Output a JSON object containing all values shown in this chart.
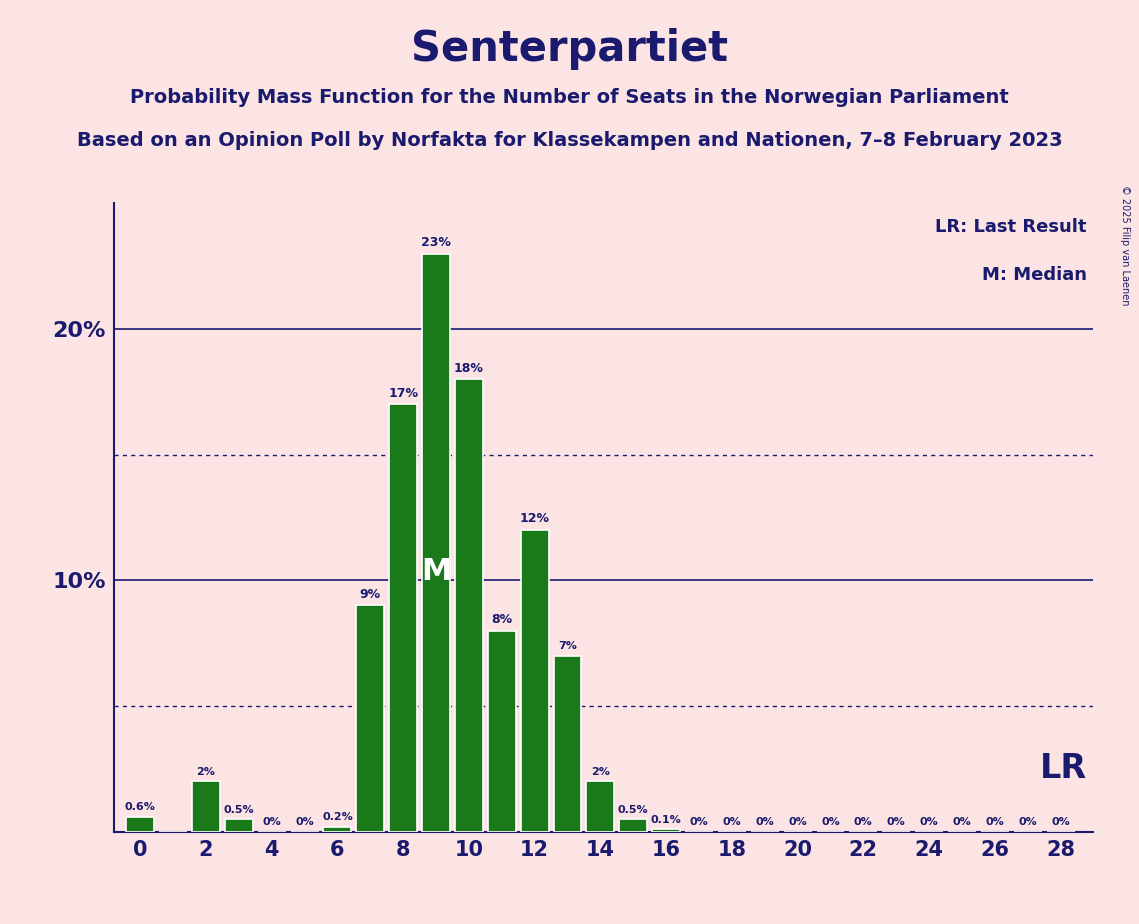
{
  "title": "Senterpartiet",
  "subtitle1": "Probability Mass Function for the Number of Seats in the Norwegian Parliament",
  "subtitle2": "Based on an Opinion Poll by Norfakta for Klassekampen and Nationen, 7–8 February 2023",
  "copyright": "© 2025 Filip van Laenen",
  "legend_lr": "LR: Last Result",
  "legend_m": "M: Median",
  "lr_label": "LR",
  "median_label": "M",
  "background_color": "#fce4e4",
  "bar_color": "#1a7a1a",
  "bar_edge_color": "#ffffff",
  "axis_color": "#1a1a6e",
  "text_color": "#1a1a6e",
  "seats": [
    0,
    1,
    2,
    3,
    4,
    5,
    6,
    7,
    8,
    9,
    10,
    11,
    12,
    13,
    14,
    15,
    16,
    17,
    18,
    19,
    20,
    21,
    22,
    23,
    24,
    25,
    26,
    27,
    28
  ],
  "probabilities": [
    0.6,
    0.0,
    2.0,
    0.5,
    0.0,
    0.0,
    0.2,
    9.0,
    17.0,
    23.0,
    18.0,
    8.0,
    12.0,
    7.0,
    2.0,
    0.5,
    0.1,
    0.0,
    0.0,
    0.0,
    0.0,
    0.0,
    0.0,
    0.0,
    0.0,
    0.0,
    0.0,
    0.0,
    0.0
  ],
  "labels": [
    "0.6%",
    "",
    "2%",
    "0.5%",
    "0%",
    "0%",
    "0.2%",
    "9%",
    "17%",
    "23%",
    "18%",
    "8%",
    "12%",
    "7%",
    "2%",
    "0.5%",
    "0.1%",
    "0%",
    "0%",
    "0%",
    "0%",
    "0%",
    "0%",
    "0%",
    "0%",
    "0%",
    "0%",
    "0%",
    "0%"
  ],
  "median_seat": 9,
  "ylim_max": 25,
  "solid_gridlines": [
    10,
    20
  ],
  "dotted_gridlines": [
    5,
    15
  ],
  "bar_width": 0.85,
  "title_fontsize": 30,
  "subtitle_fontsize": 14,
  "tick_fontsize": 15,
  "bar_label_fontsize_large": 9,
  "bar_label_fontsize_small": 8
}
